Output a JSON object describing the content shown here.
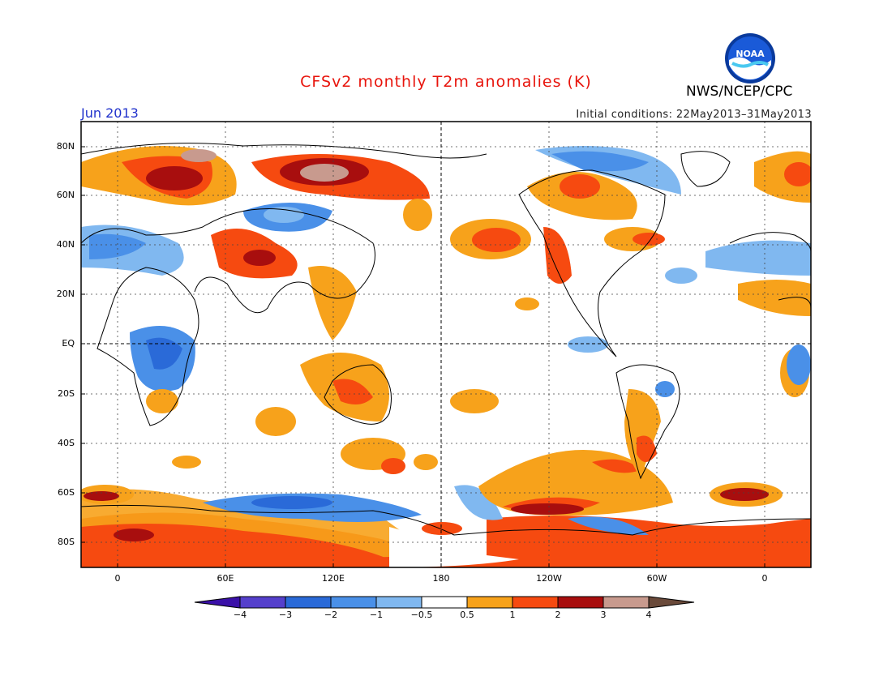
{
  "header": {
    "title": "CFSv2 monthly T2m anomalies (K)",
    "month": "Jun 2013",
    "initial_conditions": "Initial conditions: 22May2013–31May2013",
    "agency": "NWS/NCEP/CPC",
    "logo_text": "NOAA"
  },
  "map": {
    "lat_labels": [
      "80N",
      "60N",
      "40N",
      "20N",
      "EQ",
      "20S",
      "40S",
      "60S",
      "80S"
    ],
    "lon_labels": [
      "0",
      "60E",
      "120E",
      "180",
      "120W",
      "60W",
      "0"
    ]
  },
  "colorbar": {
    "labels": [
      "−4",
      "−3",
      "−2",
      "−1",
      "−0.5",
      "0.5",
      "1",
      "2",
      "3",
      "4"
    ],
    "colors": [
      "#3a10a8",
      "#5540cc",
      "#2a6ad8",
      "#4a90e8",
      "#80b8f0",
      "#ffffff",
      "#f7a21b",
      "#f64a10",
      "#a80e0e",
      "#c89a8e",
      "#6a4a3a"
    ]
  }
}
